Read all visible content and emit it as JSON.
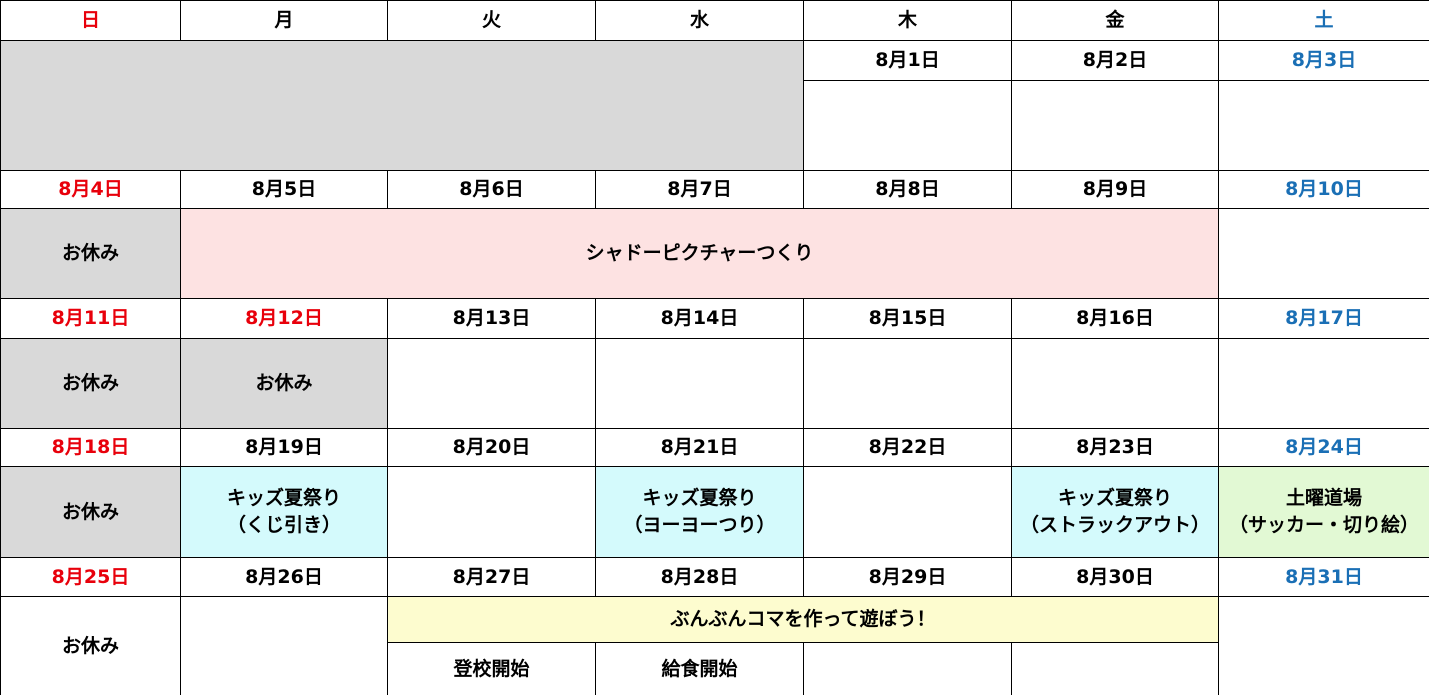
{
  "weekdays": [
    "日",
    "月",
    "火",
    "水",
    "木",
    "金",
    "土"
  ],
  "weeks": [
    {
      "dates": [
        "8月1日",
        "8月2日",
        "8月3日"
      ]
    },
    {
      "dates": [
        "8月4日",
        "8月5日",
        "8月6日",
        "8月7日",
        "8月8日",
        "8月9日",
        "8月10日"
      ],
      "closed": "お休み",
      "event": "シャドーピクチャーつくり"
    },
    {
      "dates": [
        "8月11日",
        "8月12日",
        "8月13日",
        "8月14日",
        "8月15日",
        "8月16日",
        "8月17日"
      ],
      "closed": [
        "お休み",
        "お休み"
      ]
    },
    {
      "dates": [
        "8月18日",
        "8月19日",
        "8月20日",
        "8月21日",
        "8月22日",
        "8月23日",
        "8月24日"
      ],
      "closed": "お休み",
      "events": [
        {
          "title": "キッズ夏祭り",
          "detail": "（くじ引き）"
        },
        {
          "title": "キッズ夏祭り",
          "detail": "（ヨーヨーつり）"
        },
        {
          "title": "キッズ夏祭り",
          "detail": "（ストラックアウト）"
        },
        {
          "title": "土曜道場",
          "detail": "（サッカー・切り絵）"
        }
      ]
    },
    {
      "dates": [
        "8月25日",
        "8月26日",
        "8月27日",
        "8月28日",
        "8月29日",
        "8月30日",
        "8月31日"
      ],
      "closed": "お休み",
      "event": "ぶんぶんコマを作って遊ぼう！",
      "notes": [
        "登校開始",
        "給食開始"
      ]
    }
  ]
}
